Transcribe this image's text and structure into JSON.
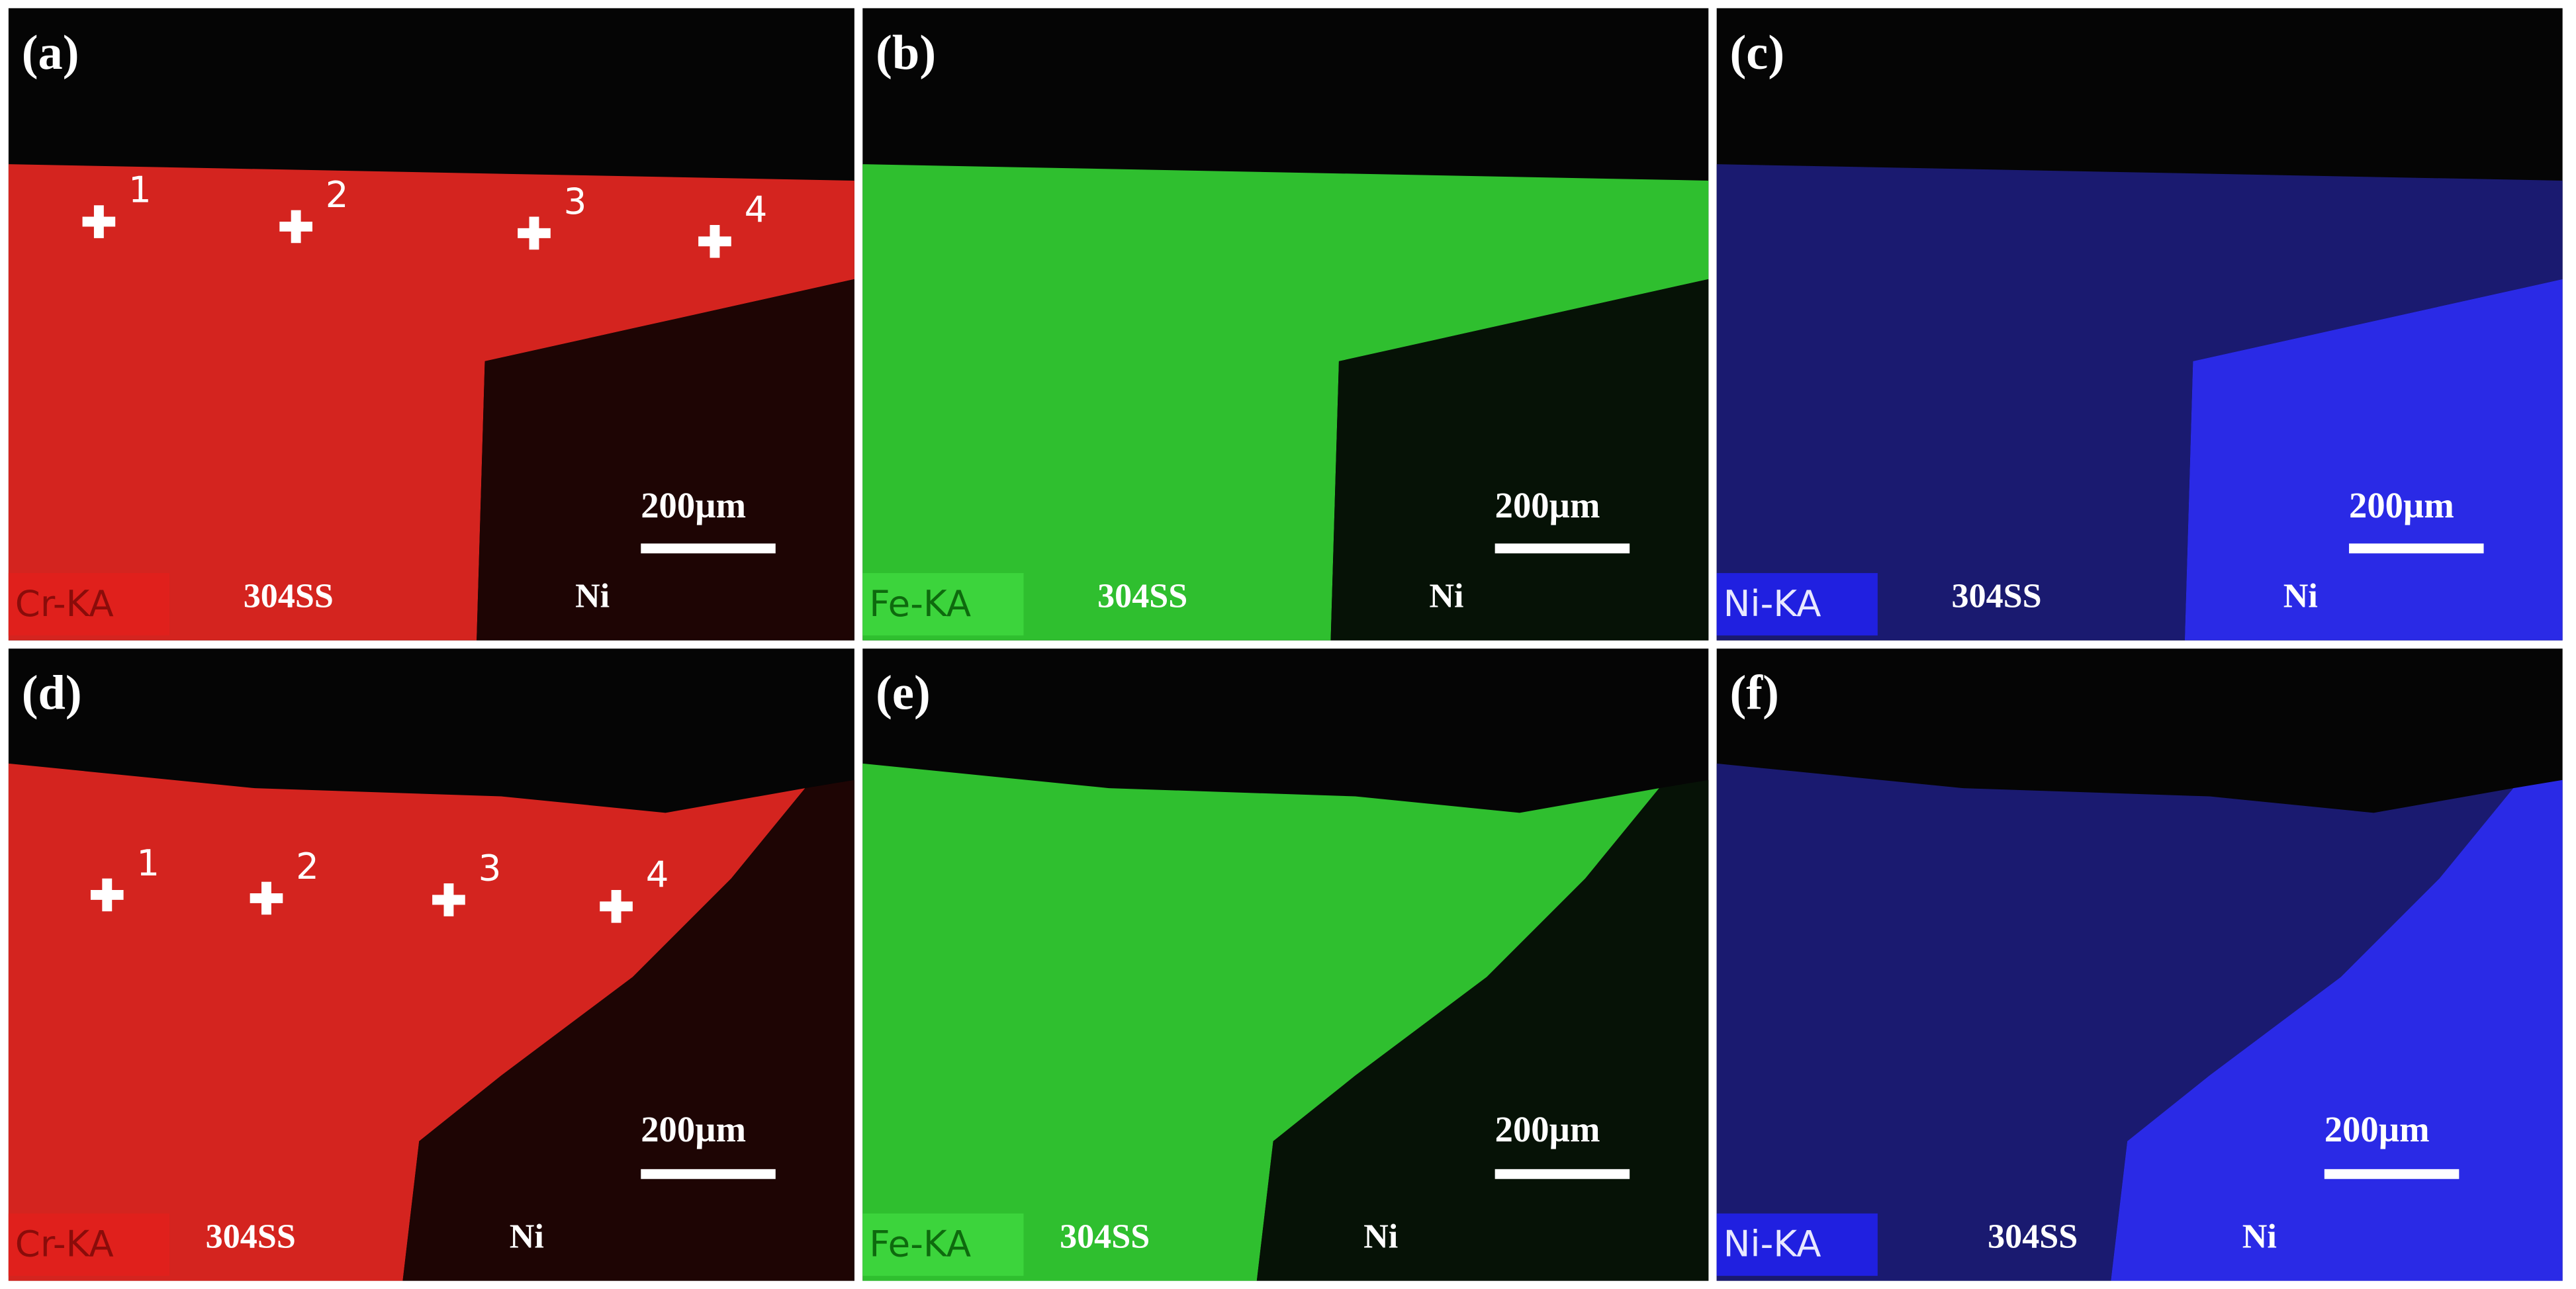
{
  "panels": [
    {
      "label": "(a)",
      "element": "Cr-KA",
      "regions": [
        "304SS",
        "Ni"
      ],
      "scale_bar": "200µm",
      "markers": [
        "1",
        "2",
        "3",
        "4"
      ]
    },
    {
      "label": "(b)",
      "element": "Fe-KA",
      "regions": [
        "304SS",
        "Ni"
      ],
      "scale_bar": "200µm"
    },
    {
      "label": "(c)",
      "element": "Ni-KA",
      "regions": [
        "304SS",
        "Ni"
      ],
      "scale_bar": "200µm"
    },
    {
      "label": "(d)",
      "element": "Cr-KA",
      "regions": [
        "304SS",
        "Ni"
      ],
      "scale_bar": "200µm",
      "markers": [
        "1",
        "2",
        "3",
        "4"
      ]
    },
    {
      "label": "(e)",
      "element": "Fe-KA",
      "regions": [
        "304SS",
        "Ni"
      ],
      "scale_bar": "200µm"
    },
    {
      "label": "(f)",
      "element": "Ni-KA",
      "regions": [
        "304SS",
        "Ni"
      ],
      "scale_bar": "200µm"
    }
  ]
}
